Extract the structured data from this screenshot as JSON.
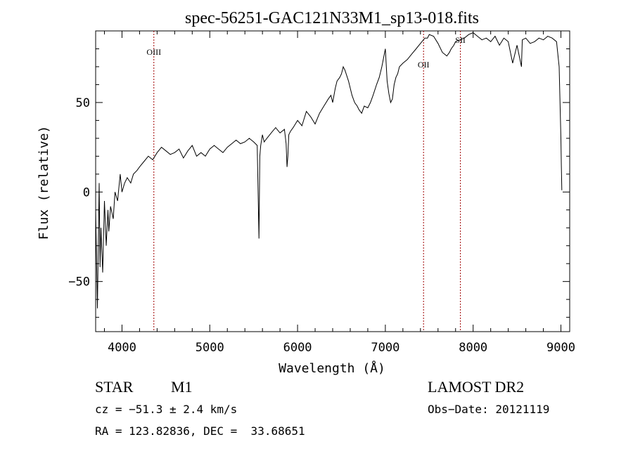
{
  "chart_data": {
    "type": "line",
    "title": "spec-56251-GAC121N33M1_sp13-018.fits",
    "xlabel": "Wavelength (Å)",
    "ylabel": "Flux (relative)",
    "xlim": [
      3700,
      9100
    ],
    "ylim": [
      -78,
      90
    ],
    "xticks": [
      4000,
      5000,
      6000,
      7000,
      8000,
      9000
    ],
    "xticklabels": [
      "4000",
      "5000",
      "6000",
      "7000",
      "8000",
      "9000"
    ],
    "yticks": [
      50,
      0,
      -50
    ],
    "yticklabels": [
      "50",
      "0",
      "−50"
    ],
    "series": [
      {
        "color": "#000000",
        "x": [
          3700,
          3720,
          3740,
          3750,
          3760,
          3780,
          3800,
          3820,
          3840,
          3850,
          3870,
          3900,
          3920,
          3950,
          3980,
          4000,
          4030,
          4060,
          4100,
          4130,
          4170,
          4200,
          4250,
          4300,
          4350,
          4400,
          4450,
          4500,
          4550,
          4600,
          4650,
          4700,
          4750,
          4800,
          4850,
          4900,
          4950,
          5000,
          5050,
          5100,
          5150,
          5200,
          5250,
          5300,
          5350,
          5400,
          5450,
          5500,
          5540,
          5560,
          5570,
          5580,
          5600,
          5620,
          5650,
          5700,
          5750,
          5800,
          5850,
          5870,
          5880,
          5890,
          5900,
          5920,
          5950,
          6000,
          6050,
          6100,
          6150,
          6200,
          6250,
          6300,
          6350,
          6380,
          6400,
          6430,
          6450,
          6480,
          6500,
          6520,
          6540,
          6560,
          6580,
          6600,
          6620,
          6650,
          6680,
          6700,
          6730,
          6760,
          6800,
          6830,
          6860,
          6900,
          6930,
          6960,
          7000,
          7020,
          7040,
          7060,
          7080,
          7100,
          7120,
          7140,
          7160,
          7200,
          7250,
          7300,
          7350,
          7400,
          7450,
          7480,
          7500,
          7550,
          7600,
          7650,
          7700,
          7730,
          7750,
          7780,
          7800,
          7850,
          7900,
          7950,
          8000,
          8050,
          8100,
          8150,
          8200,
          8250,
          8300,
          8350,
          8400,
          8450,
          8500,
          8550,
          8560,
          8600,
          8650,
          8700,
          8750,
          8800,
          8850,
          8900,
          8950,
          8980,
          9000,
          9005,
          9010
        ],
        "y": [
          -10,
          -65,
          5,
          -42,
          -20,
          -45,
          -5,
          -30,
          -10,
          -22,
          -8,
          -15,
          0,
          -5,
          10,
          0,
          5,
          8,
          5,
          10,
          12,
          14,
          17,
          20,
          18,
          22,
          25,
          23,
          21,
          22,
          24,
          19,
          23,
          26,
          20,
          22,
          20,
          24,
          26,
          24,
          22,
          25,
          27,
          29,
          27,
          28,
          30,
          28,
          26,
          -26,
          20,
          26,
          32,
          28,
          30,
          33,
          36,
          33,
          35,
          27,
          14,
          20,
          32,
          34,
          36,
          40,
          37,
          45,
          42,
          38,
          44,
          48,
          52,
          54,
          50,
          58,
          62,
          64,
          66,
          70,
          68,
          65,
          62,
          58,
          54,
          50,
          48,
          46,
          44,
          48,
          47,
          50,
          54,
          60,
          64,
          70,
          80,
          62,
          55,
          50,
          52,
          60,
          64,
          66,
          70,
          72,
          74,
          77,
          80,
          83,
          86,
          86,
          88,
          87,
          83,
          78,
          76,
          78,
          80,
          82,
          84,
          85,
          86,
          88,
          89,
          87,
          85,
          86,
          84,
          87,
          82,
          86,
          84,
          72,
          82,
          70,
          85,
          86,
          83,
          84,
          86,
          85,
          87,
          86,
          84,
          70,
          30,
          15,
          1
        ]
      }
    ],
    "lines": [
      {
        "label": "OIII",
        "x": 4363
      },
      {
        "label": "OII",
        "x": 7435
      },
      {
        "label": "SII",
        "x": 7855
      }
    ],
    "grid": false,
    "legend": "none"
  },
  "info": {
    "object_type": "STAR",
    "subclass": "M1",
    "survey": "LAMOST DR2",
    "cz": "cz = −51.3 ± 2.4 km/s",
    "obs_date": "Obs−Date: 20121119",
    "coords": "RA = 123.82836, DEC =  33.68651"
  }
}
